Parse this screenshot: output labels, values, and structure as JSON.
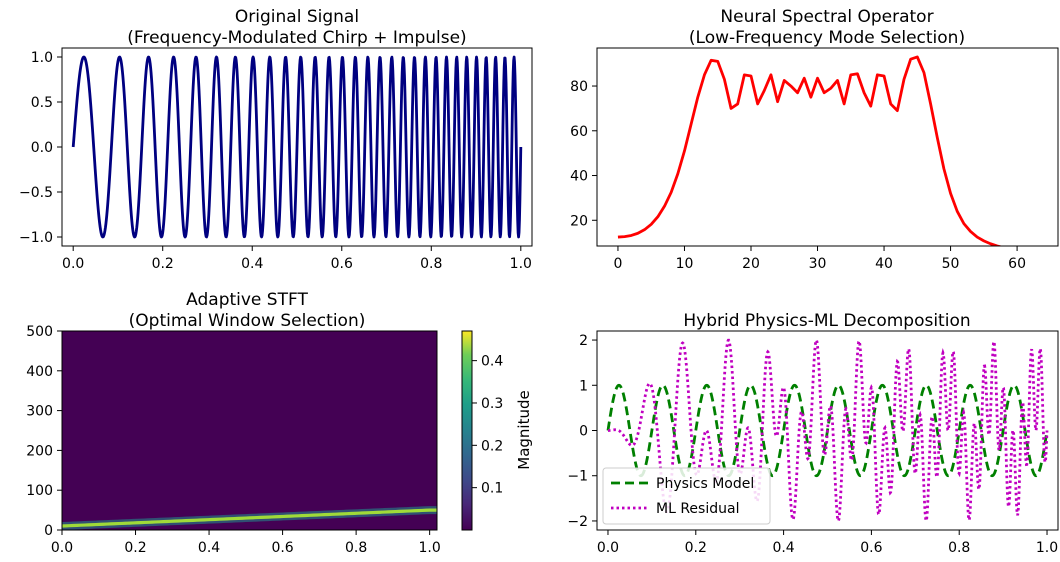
{
  "chart_data": [
    {
      "type": "line",
      "title_line1": "Original Signal",
      "title_line2": "(Frequency-Modulated Chirp + Impulse)",
      "xlim": [
        -0.025,
        1.025
      ],
      "ylim": [
        -1.1,
        1.1
      ],
      "xticks": [
        0.0,
        0.2,
        0.4,
        0.6,
        0.8,
        1.0
      ],
      "xtick_labels": [
        "0.0",
        "0.2",
        "0.4",
        "0.6",
        "0.8",
        "1.0"
      ],
      "yticks": [
        1.0,
        0.5,
        0.0,
        -0.5,
        -1.0
      ],
      "ytick_labels": [
        "1.0",
        "0.5",
        "0.0",
        "−0.5",
        "−1.0"
      ],
      "series": [
        {
          "style": "solid",
          "color": "#000080",
          "f0": 10,
          "f1": 50,
          "samples": 1000
        }
      ]
    },
    {
      "type": "line",
      "title_line1": "Neural Spectral Operator",
      "title_line2": "(Low-Frequency Mode Selection)",
      "xlim": [
        -3.15,
        66.15
      ],
      "ylim": [
        8.5,
        97.0
      ],
      "xticks": [
        0,
        10,
        20,
        30,
        40,
        50,
        60
      ],
      "xtick_labels": [
        "0",
        "10",
        "20",
        "30",
        "40",
        "50",
        "60"
      ],
      "yticks": [
        80,
        60,
        40,
        20
      ],
      "ytick_labels": [
        "80",
        "60",
        "40",
        "20"
      ],
      "series": [
        {
          "style": "solid",
          "color": "#ff0000",
          "x": [
            0,
            1,
            2,
            3,
            4,
            5,
            6,
            7,
            8,
            9,
            10,
            11,
            12,
            13,
            14,
            15,
            16,
            17,
            18,
            19,
            20,
            21,
            22,
            23,
            24,
            25,
            26,
            27,
            28,
            29,
            30,
            31,
            32,
            33,
            34,
            35,
            36,
            37,
            38,
            39,
            40,
            41,
            42,
            43,
            44,
            45,
            46,
            47,
            48,
            49,
            50,
            51,
            52,
            53,
            54,
            55,
            56,
            57,
            58,
            59,
            60,
            61,
            62,
            63
          ],
          "y": [
            12.5,
            12.7,
            13.2,
            14.2,
            15.8,
            18.2,
            21.6,
            26.3,
            32.5,
            40.8,
            51.0,
            63.0,
            75.0,
            85.0,
            91.5,
            91.0,
            83.0,
            70.0,
            72.0,
            85.0,
            84.5,
            72.0,
            78.0,
            85.0,
            73.0,
            82.5,
            80.0,
            77.0,
            83.5,
            75.0,
            83.5,
            77.0,
            79.0,
            82.5,
            72.0,
            85.0,
            85.5,
            77.0,
            71.0,
            85.0,
            84.5,
            72.0,
            69.0,
            83.0,
            92.0,
            93.0,
            86.0,
            72.0,
            57.0,
            43.0,
            32.0,
            24.0,
            18.5,
            15.0,
            12.5,
            10.8,
            9.5,
            8.5,
            7.8,
            7.2,
            6.7,
            6.3,
            5.9,
            5.6
          ]
        }
      ]
    },
    {
      "type": "heatmap",
      "title_line1": "Adaptive STFT",
      "title_line2": "(Optimal Window Selection)",
      "xlim": [
        0.0,
        1.02
      ],
      "ylim": [
        0,
        500
      ],
      "xticks": [
        0.0,
        0.2,
        0.4,
        0.6,
        0.8,
        1.0
      ],
      "xtick_labels": [
        "0.0",
        "0.2",
        "0.4",
        "0.6",
        "0.8",
        "1.0"
      ],
      "yticks": [
        500,
        400,
        300,
        200,
        100,
        0
      ],
      "ytick_labels": [
        "500",
        "400",
        "300",
        "200",
        "100",
        "0"
      ],
      "ridge": {
        "f_start": 10,
        "f_end": 50,
        "peak_magnitude": 0.47
      },
      "colorbar": {
        "label": "Magnitude",
        "range": [
          0.0,
          0.47
        ],
        "ticks": [
          0.4,
          0.3,
          0.2,
          0.1
        ],
        "tick_labels": [
          "0.4",
          "0.3",
          "0.2",
          "0.1"
        ],
        "colormap": "viridis"
      }
    },
    {
      "type": "line",
      "title_line1": "Hybrid Physics-ML Decomposition",
      "title_line2": "",
      "xlim": [
        -0.025,
        1.025
      ],
      "ylim": [
        -2.2,
        2.2
      ],
      "xticks": [
        0.0,
        0.2,
        0.4,
        0.6,
        0.8,
        1.0
      ],
      "xtick_labels": [
        "0.0",
        "0.2",
        "0.4",
        "0.6",
        "0.8",
        "1.0"
      ],
      "yticks": [
        2,
        1,
        0,
        -1,
        -2
      ],
      "ytick_labels": [
        "2",
        "1",
        "0",
        "−1",
        "−2"
      ],
      "legend": {
        "position": "lower-left"
      },
      "series": [
        {
          "name": "Physics Model",
          "style": "dashed",
          "color": "#008000",
          "freq": 10
        },
        {
          "name": "ML Residual",
          "style": "dotted",
          "color": "#c000c0",
          "f0": 10,
          "f1": 50
        }
      ]
    }
  ]
}
